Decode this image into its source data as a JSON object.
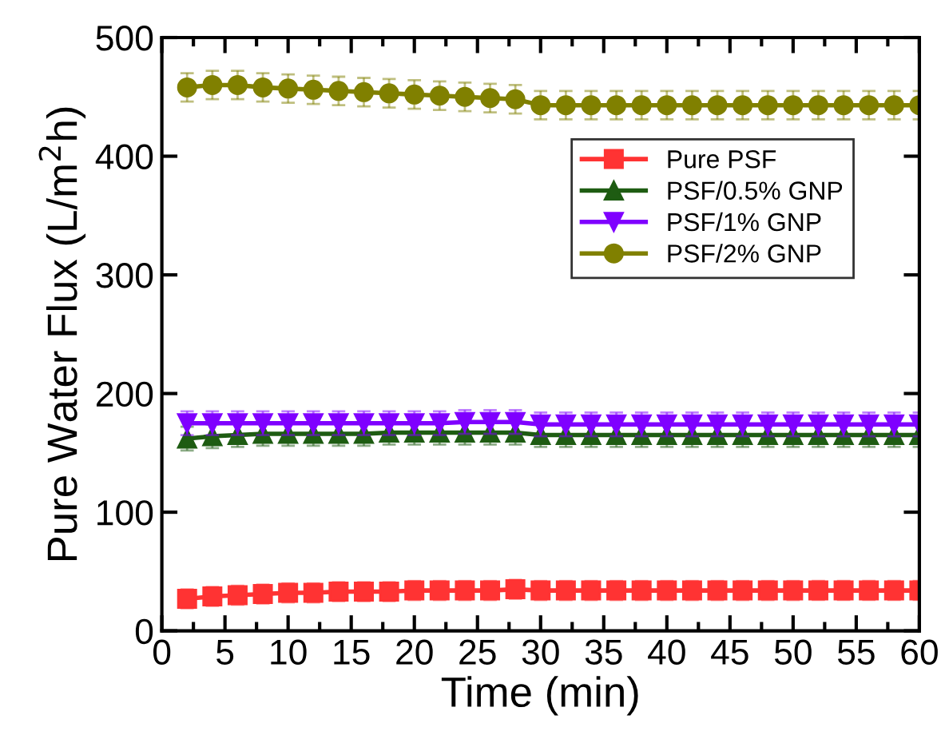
{
  "chart_data": {
    "type": "line",
    "xlabel": "Time (min)",
    "ylabel": "Pure Water Flux (L/m$^{2}$h)",
    "x": [
      2,
      4,
      6,
      8,
      10,
      12,
      14,
      16,
      18,
      20,
      22,
      24,
      26,
      28,
      30,
      32,
      34,
      36,
      38,
      40,
      42,
      44,
      46,
      48,
      50,
      52,
      54,
      56,
      58,
      60
    ],
    "xlim": [
      0,
      60
    ],
    "xticks": [
      0,
      5,
      10,
      15,
      20,
      25,
      30,
      35,
      40,
      45,
      50,
      55,
      60
    ],
    "ylim": [
      0,
      500
    ],
    "yticks": [
      0,
      100,
      200,
      300,
      400,
      500
    ],
    "line_style": "solid",
    "grid": false,
    "legend": "top right",
    "series": [
      {
        "name": "Pure PSF",
        "color": "#ff3333",
        "marker": "square",
        "values": [
          27,
          29,
          30,
          31,
          32,
          32,
          33,
          33,
          33,
          34,
          34,
          34,
          34,
          35,
          34,
          34,
          34,
          34,
          34,
          34,
          34,
          34,
          34,
          34,
          34,
          34,
          34,
          34,
          34,
          34
        ],
        "errors": [
          8,
          8,
          8,
          8,
          8,
          8,
          8,
          8,
          8,
          8,
          8,
          8,
          8,
          8,
          8,
          8,
          8,
          8,
          8,
          8,
          8,
          8,
          8,
          8,
          8,
          8,
          8,
          8,
          8,
          8
        ]
      },
      {
        "name": "PSF/0.5% GNP",
        "color": "#1e5c12",
        "marker": "triangle",
        "values": [
          162,
          164,
          165,
          166,
          166,
          166,
          166,
          166,
          167,
          167,
          167,
          167,
          167,
          167,
          165,
          165,
          165,
          165,
          165,
          165,
          165,
          165,
          165,
          165,
          165,
          165,
          165,
          165,
          165,
          165
        ],
        "errors": [
          10,
          10,
          10,
          10,
          10,
          10,
          10,
          10,
          10,
          10,
          10,
          10,
          10,
          10,
          10,
          10,
          10,
          10,
          10,
          10,
          10,
          10,
          10,
          10,
          10,
          10,
          10,
          10,
          10,
          10
        ]
      },
      {
        "name": "PSF/1% GNP",
        "color": "#7f00ff",
        "marker": "triangle_down",
        "values": [
          175,
          175,
          175,
          175,
          175,
          175,
          175,
          175,
          175,
          175,
          175,
          176,
          176,
          176,
          174,
          174,
          174,
          174,
          174,
          174,
          174,
          174,
          174,
          174,
          174,
          174,
          174,
          174,
          174,
          174
        ],
        "errors": [
          10,
          10,
          10,
          10,
          10,
          10,
          10,
          10,
          10,
          10,
          10,
          10,
          10,
          10,
          10,
          10,
          10,
          10,
          10,
          10,
          10,
          10,
          10,
          10,
          10,
          10,
          10,
          10,
          10,
          10
        ]
      },
      {
        "name": "PSF/2% GNP",
        "color": "#808000",
        "marker": "circle",
        "values": [
          458,
          460,
          460,
          458,
          457,
          456,
          455,
          454,
          453,
          452,
          451,
          450,
          449,
          448,
          443,
          443,
          443,
          443,
          443,
          443,
          443,
          443,
          443,
          443,
          443,
          443,
          443,
          443,
          443,
          443
        ],
        "errors": [
          12,
          12,
          12,
          12,
          12,
          12,
          12,
          12,
          12,
          12,
          12,
          12,
          12,
          12,
          12,
          12,
          12,
          12,
          12,
          12,
          12,
          12,
          12,
          12,
          12,
          12,
          12,
          12,
          12,
          12
        ]
      }
    ]
  }
}
